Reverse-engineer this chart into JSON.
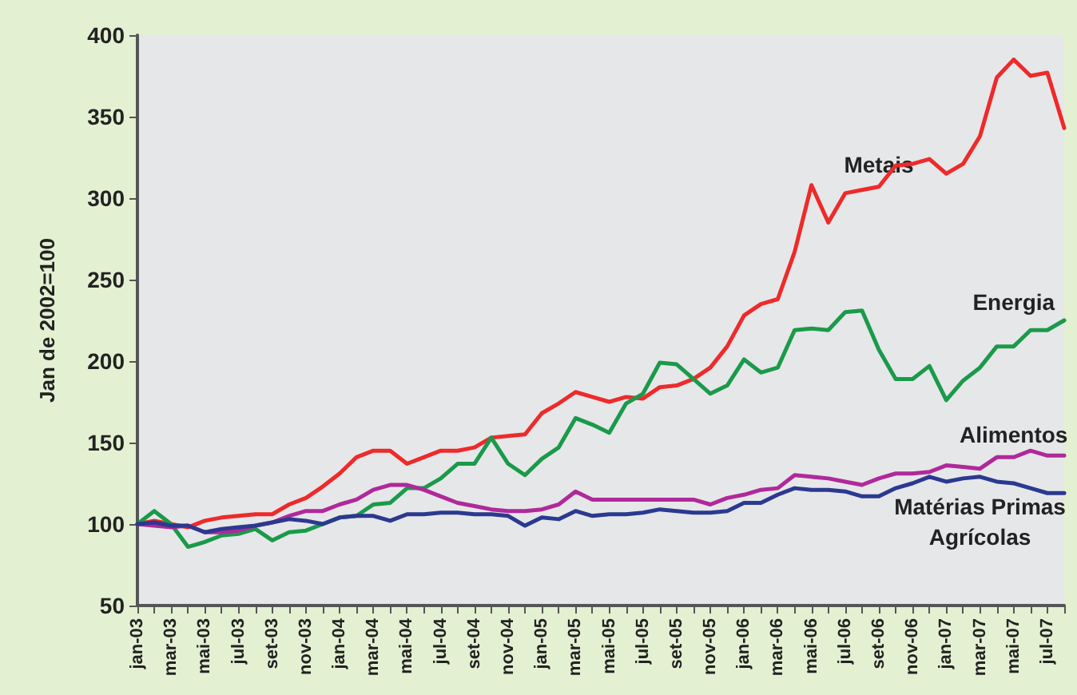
{
  "chart_data": {
    "type": "line",
    "ylabel": "Jan de 2002=100",
    "categories": [
      "jan-03",
      null,
      "mar-03",
      null,
      "mai-03",
      null,
      "jul-03",
      null,
      "set-03",
      null,
      "nov-03",
      null,
      "jan-04",
      null,
      "mar-04",
      null,
      "mai-04",
      null,
      "jul-04",
      null,
      "set-04",
      null,
      "nov-04",
      null,
      "jan-05",
      null,
      "mar-05",
      null,
      "mai-05",
      null,
      "jul-05",
      null,
      "set-05",
      null,
      "nov-05",
      null,
      "jan-06",
      null,
      "mar-06",
      null,
      "mai-06",
      null,
      "jul-06",
      null,
      "set-06",
      null,
      "nov-06",
      null,
      "jan-07",
      null,
      "mar-07",
      null,
      "mai-07",
      null,
      "jul-07",
      null
    ],
    "series": [
      {
        "name": "Metais",
        "color": "#ee2a2a",
        "values": [
          100,
          102,
          100,
          98,
          102,
          104,
          105,
          106,
          106,
          112,
          116,
          123,
          131,
          141,
          145,
          145,
          137,
          141,
          145,
          145,
          147,
          153,
          154,
          155,
          168,
          174,
          181,
          178,
          175,
          178,
          177,
          184,
          185,
          189,
          196,
          209,
          228,
          235,
          238,
          267,
          308,
          285,
          303,
          305,
          307,
          320,
          321,
          324,
          315,
          321,
          338,
          374,
          385,
          375,
          377,
          343
        ]
      },
      {
        "name": "Energia",
        "color": "#1a9a4a",
        "values": [
          100,
          108,
          100,
          86,
          89,
          93,
          94,
          97,
          90,
          95,
          96,
          100,
          104,
          105,
          112,
          113,
          122,
          122,
          128,
          137,
          137,
          153,
          137,
          130,
          140,
          147,
          165,
          161,
          156,
          174,
          180,
          199,
          198,
          189,
          180,
          185,
          201,
          193,
          196,
          219,
          220,
          219,
          230,
          231,
          207,
          189,
          189,
          197,
          176,
          188,
          196,
          209,
          209,
          219,
          219,
          225
        ]
      },
      {
        "name": "Alimentos",
        "color": "#b0299a",
        "values": [
          100,
          99,
          98,
          99,
          95,
          95,
          96,
          99,
          101,
          105,
          108,
          108,
          112,
          115,
          121,
          124,
          124,
          121,
          117,
          113,
          111,
          109,
          108,
          108,
          109,
          112,
          120,
          115,
          115,
          115,
          115,
          115,
          115,
          115,
          112,
          116,
          118,
          121,
          122,
          130,
          129,
          128,
          126,
          124,
          128,
          131,
          131,
          132,
          136,
          135,
          134,
          141,
          141,
          145,
          142,
          142
        ]
      },
      {
        "name": "Matérias Primas\nAgrícolas",
        "color": "#2b3990",
        "values": [
          100,
          101,
          99,
          99,
          95,
          97,
          98,
          99,
          101,
          103,
          102,
          100,
          104,
          105,
          105,
          102,
          106,
          106,
          107,
          107,
          106,
          106,
          105,
          99,
          104,
          103,
          108,
          105,
          106,
          106,
          107,
          109,
          108,
          107,
          107,
          108,
          113,
          113,
          118,
          122,
          121,
          121,
          120,
          117,
          117,
          122,
          125,
          129,
          126,
          128,
          129,
          126,
          125,
          122,
          119,
          119
        ]
      }
    ],
    "ylim": [
      50,
      400
    ],
    "yticks": [
      50,
      100,
      150,
      200,
      250,
      300,
      350,
      400
    ],
    "grid": false,
    "legend": false,
    "marker": "none",
    "line_style": "solid"
  }
}
